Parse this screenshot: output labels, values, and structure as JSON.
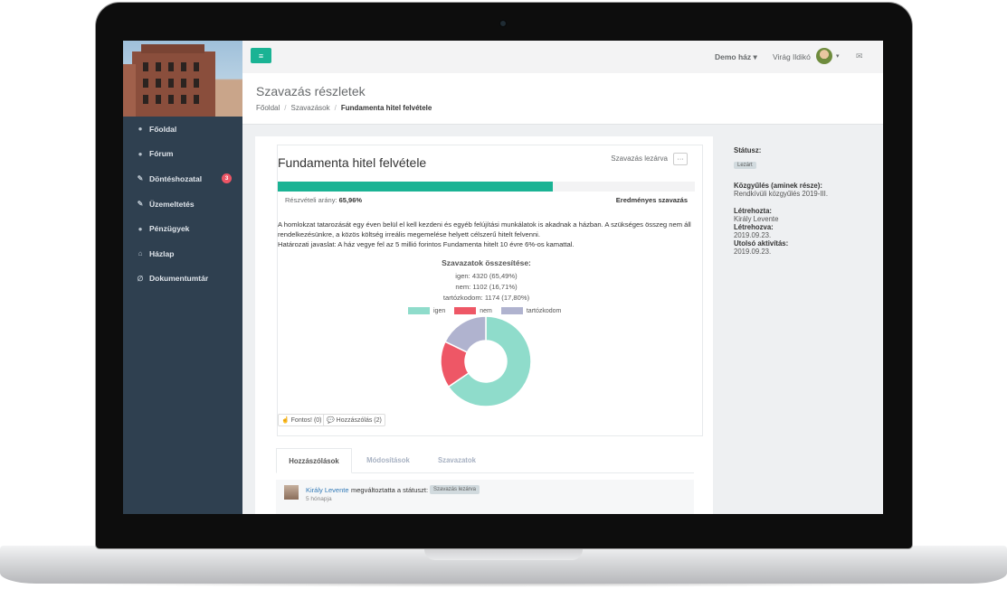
{
  "sidebar": {
    "items": [
      {
        "label": "Főoldal",
        "icon": "info-circle-icon",
        "glyph": "●"
      },
      {
        "label": "Fórum",
        "icon": "comment-icon",
        "glyph": "●"
      },
      {
        "label": "Döntéshozatal",
        "icon": "gavel-icon",
        "glyph": "✎",
        "badge": "3"
      },
      {
        "label": "Üzemeltetés",
        "icon": "wrench-icon",
        "glyph": "✎"
      },
      {
        "label": "Pénzügyek",
        "icon": "piggy-bank-icon",
        "glyph": "●"
      },
      {
        "label": "Házlap",
        "icon": "home-icon",
        "glyph": "⌂"
      },
      {
        "label": "Dokumentumtár",
        "icon": "paperclip-icon",
        "glyph": "∅"
      }
    ]
  },
  "topbar": {
    "menu_glyph": "≡",
    "house": "Demo ház ▾",
    "user": "Virág Ildikó",
    "caret": "▾",
    "mail_glyph": "✉"
  },
  "heading": {
    "title": "Szavazás részletek",
    "breadcrumb": [
      "Főoldal",
      "Szavazások",
      "Fundamenta hitel felvétele"
    ],
    "sep": "/"
  },
  "vote": {
    "title": "Fundamenta hitel felvétele",
    "close_label": "Szavazás lezárva",
    "dots": "···",
    "participation_label": "Részvételi arány:",
    "participation_value": "65,96%",
    "participation_fraction": 0.6596,
    "result": "Eredményes szavazás",
    "description": [
      "A homlokzat tatarozását egy éven belül el kell kezdeni és egyéb felújítási munkálatok is akadnak a házban. A szükséges összeg nem áll rendelkezésünkre, a közös költség irreális megemelése helyett célszerű hitelt felvenni.",
      "Határozati javaslat: A ház vegye fel az 5 millió forintos Fundamenta hitelt 10 évre 6%-os kamattal."
    ],
    "summary_title": "Szavazatok összesítése:",
    "summary_lines": [
      "igen: 4320 (65,49%)",
      "nem: 1102 (16,71%)",
      "tartózkodom: 1174 (17,80%)"
    ],
    "important_btn": "☝ Fontos! (0)",
    "comment_btn": "💬 Hozzászólás (2)"
  },
  "chart_data": {
    "type": "pie",
    "categories": [
      "igen",
      "nem",
      "tartózkodom"
    ],
    "values": [
      4320,
      1102,
      1174
    ],
    "colors": [
      "#8fdccb",
      "#ee5766",
      "#b0b3cf"
    ],
    "legend": "top"
  },
  "tabs": [
    {
      "label": "Hozzászólások",
      "active": true
    },
    {
      "label": "Módosítások",
      "active": false
    },
    {
      "label": "Szavazatok",
      "active": false
    }
  ],
  "comment": {
    "author": "Király Levente",
    "text": "megváltoztatta a státuszt:",
    "badge": "Szavazás lezárva",
    "time": "5 hónapja"
  },
  "info": {
    "status_label": "Státusz:",
    "status_value": "Lezárt",
    "meeting_label": "Közgyűlés (aminek része):",
    "meeting_value": "Rendkívüli közgyűlés 2019-III.",
    "creator_label": "Létrehozta:",
    "creator_value": "Király Levente",
    "created_label": "Létrehozva:",
    "created_value": "2019.09.23.",
    "activity_label": "Utolsó aktivítás:",
    "activity_value": "2019.09.23."
  }
}
